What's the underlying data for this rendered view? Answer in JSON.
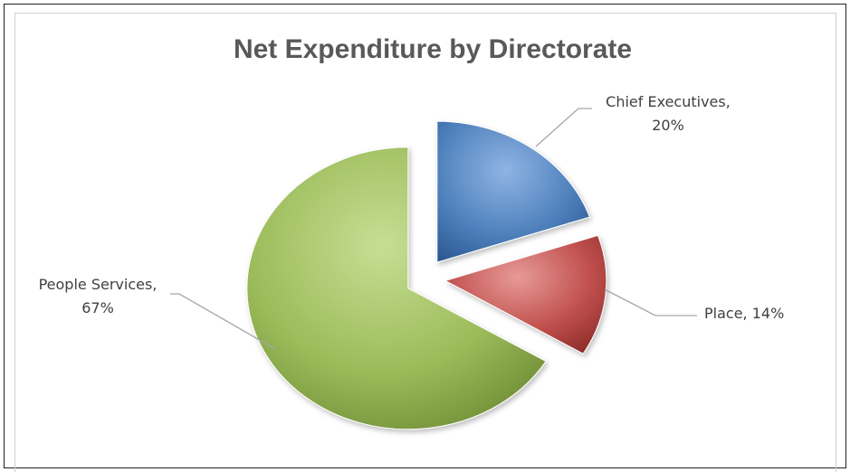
{
  "chart_data": {
    "type": "pie",
    "title": "Net Expenditure by Directorate",
    "exploded": true,
    "data_labels": "category, percentage",
    "slices": [
      {
        "name": "Chief Executives",
        "value": 20,
        "label_name": "Chief Executives,",
        "label_value": "20%",
        "color": "#4f81bd"
      },
      {
        "name": "Place",
        "value": 14,
        "label_name": "Place, 14%",
        "label_value": "",
        "color": "#c0504d"
      },
      {
        "name": "People Services",
        "value": 67,
        "label_name": "People Services,",
        "label_value": "67%",
        "color": "#9bbb59"
      }
    ]
  }
}
